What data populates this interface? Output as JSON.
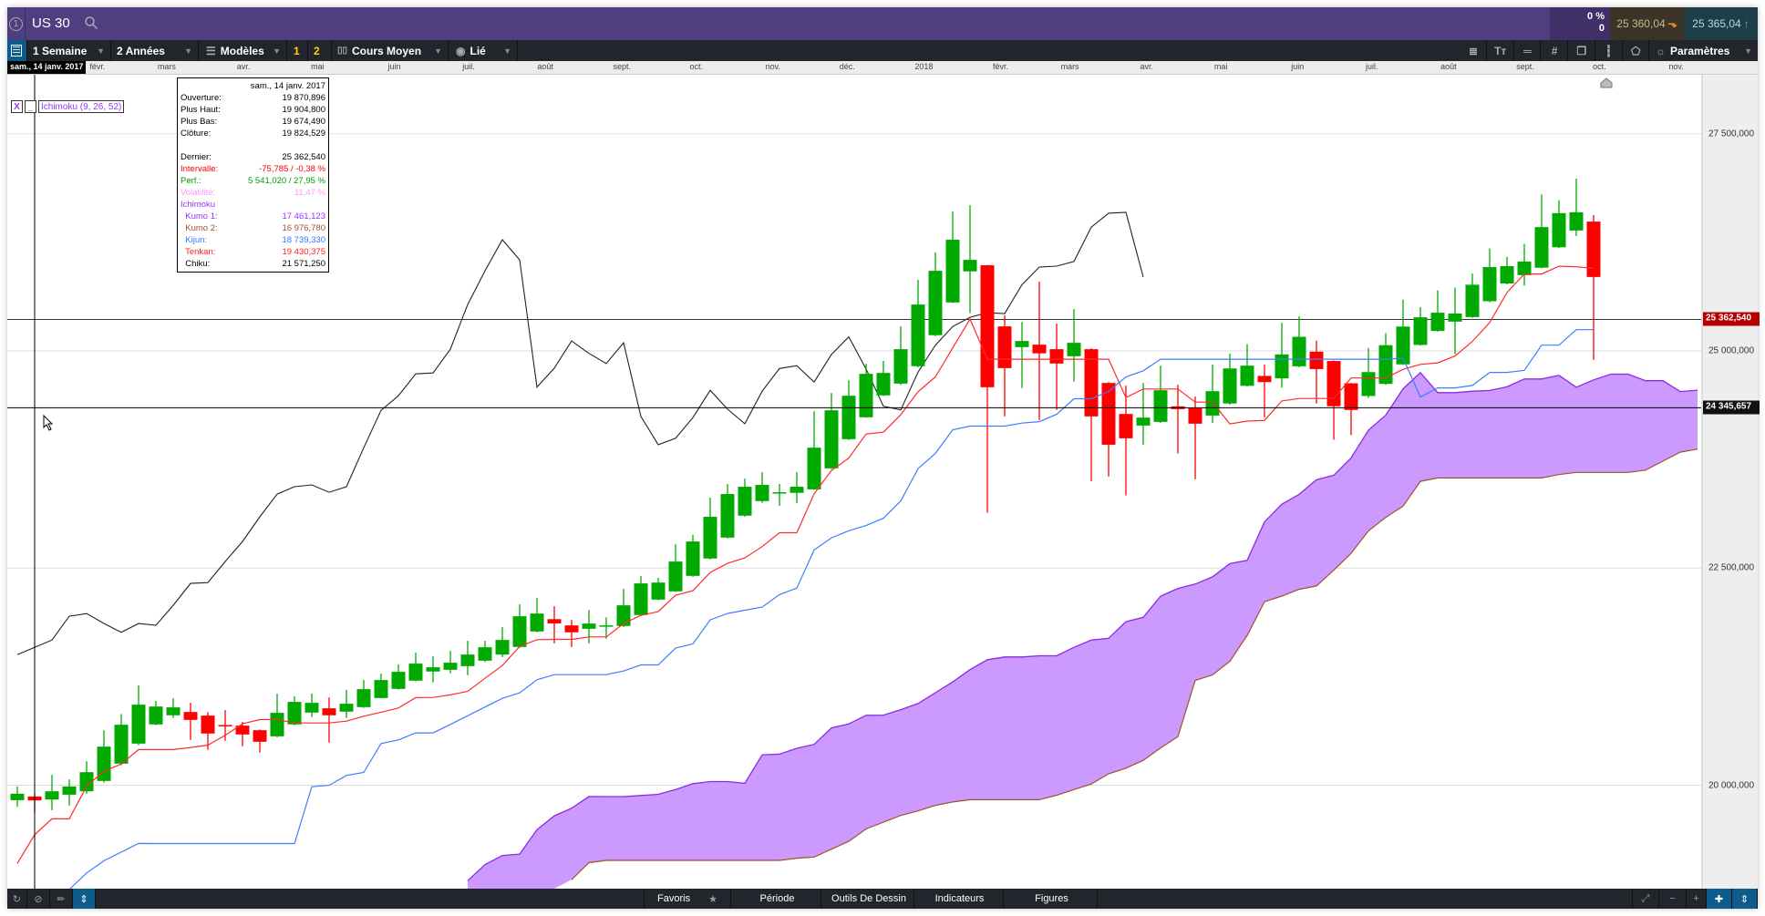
{
  "header": {
    "badge": "1",
    "symbol": "US 30",
    "change_pct": "0 %",
    "change_abs": "0",
    "bid": "25 360,04",
    "ask": "25 365,04"
  },
  "toolbar": {
    "period": "1 Semaine",
    "range": "2 Années",
    "models": "Modèles",
    "layout1": "1",
    "layout2": "2",
    "chart_type": "Cours Moyen",
    "link": "Lié",
    "settings": "Paramètres",
    "right_icons": [
      "price-scale-icon",
      "text-size-icon",
      "horizontal-lines-icon",
      "grid-edit-icon",
      "windows-icon",
      "candle-icon",
      "tag-icon"
    ]
  },
  "crosshair": {
    "date_label": "sam., 14 janv. 2017",
    "price_label": "24 345,657",
    "price": 24345.657
  },
  "last_price": {
    "label": "25 362,540",
    "value": 25362.54
  },
  "legend": {
    "close": "X",
    "minimize": "_",
    "indicator": "Ichimoku (9, 26, 52)"
  },
  "tooltip": {
    "date": "sam., 14 janv. 2017",
    "rows": [
      {
        "label": "Ouverture:",
        "value": "19 870,896",
        "color": "#000000"
      },
      {
        "label": "Plus Haut:",
        "value": "19 904,800",
        "color": "#000000"
      },
      {
        "label": "Plus Bas:",
        "value": "19 674,490",
        "color": "#000000"
      },
      {
        "label": "Clôture:",
        "value": "19 824,529",
        "color": "#000000"
      },
      {
        "label": "",
        "value": "",
        "color": "#000000"
      },
      {
        "label": "Dernier:",
        "value": "25 362,540",
        "color": "#000000"
      },
      {
        "label": "Intervalle:",
        "value": "-75,785 / -0,38 %",
        "color": "#ff0000"
      },
      {
        "label": "Perf.:",
        "value": "5 541,020 / 27,95 %",
        "color": "#00a000"
      },
      {
        "label": "Volatilité:",
        "value": "11,47 %",
        "color": "#ff99ff"
      },
      {
        "label": "Ichimoku",
        "value": "",
        "color": "#9933ff"
      },
      {
        "label": "  Kumo 1:",
        "value": "17 461,123",
        "color": "#9933ff"
      },
      {
        "label": "  Kumo 2:",
        "value": "16 976,780",
        "color": "#a0522d"
      },
      {
        "label": "  Kijun:",
        "value": "18 739,330",
        "color": "#3377ff"
      },
      {
        "label": "  Tenkan:",
        "value": "19 430,375",
        "color": "#ff2222"
      },
      {
        "label": "  Chiku:",
        "value": "21 571,250",
        "color": "#000000"
      }
    ]
  },
  "bottombar": {
    "favorites": "Favoris",
    "period": "Période",
    "drawing_tools": "Outils De Dessin",
    "indicators": "Indicateurs",
    "figures": "Figures"
  },
  "colors": {
    "up": "#00aa00",
    "down": "#ff0000",
    "tenkan": "#ff2a2a",
    "kijun": "#3a7fff",
    "chikou": "#222222",
    "kumo1": "#8a2be2",
    "kumo2": "#a0522d",
    "kumo_fill": "#cc99ff",
    "last_price": "#b30000"
  },
  "chart_data": {
    "type": "candlestick",
    "interval": "weekly",
    "first_week": "2017-01-07",
    "ylim": [
      18810,
      28180
    ],
    "yticks": [
      {
        "v": 27500,
        "label": "27 500,000"
      },
      {
        "v": 25000,
        "label": "25 000,000"
      },
      {
        "v": 22500,
        "label": "22 500,000"
      },
      {
        "v": 20000,
        "label": "20 000,000"
      }
    ],
    "xticks": [
      {
        "d": "2017-02-01",
        "label": "févr."
      },
      {
        "d": "2017-03-01",
        "label": "mars"
      },
      {
        "d": "2017-04-01",
        "label": "avr."
      },
      {
        "d": "2017-05-01",
        "label": "mai"
      },
      {
        "d": "2017-06-01",
        "label": "juin"
      },
      {
        "d": "2017-07-01",
        "label": "juil."
      },
      {
        "d": "2017-08-01",
        "label": "août"
      },
      {
        "d": "2017-09-01",
        "label": "sept."
      },
      {
        "d": "2017-10-01",
        "label": "oct."
      },
      {
        "d": "2017-11-01",
        "label": "nov."
      },
      {
        "d": "2017-12-01",
        "label": "déc."
      },
      {
        "d": "2018-01-01",
        "label": "2018"
      },
      {
        "d": "2018-02-01",
        "label": "févr."
      },
      {
        "d": "2018-03-01",
        "label": "mars"
      },
      {
        "d": "2018-04-01",
        "label": "avr."
      },
      {
        "d": "2018-05-01",
        "label": "mai"
      },
      {
        "d": "2018-06-01",
        "label": "juin"
      },
      {
        "d": "2018-07-01",
        "label": "juil."
      },
      {
        "d": "2018-08-01",
        "label": "août"
      },
      {
        "d": "2018-09-01",
        "label": "sept."
      },
      {
        "d": "2018-10-01",
        "label": "oct."
      },
      {
        "d": "2018-11-01",
        "label": "nov."
      }
    ],
    "open": [
      19828,
      19870,
      19835,
      19891,
      19930,
      20049,
      20248,
      20479,
      20700,
      20805,
      20843,
      20801,
      20693,
      20686,
      20633,
      20563,
      20700,
      20836,
      20885,
      20847,
      20899,
      21004,
      21109,
      21204,
      21309,
      21329,
      21371,
      21434,
      21504,
      21592,
      21770,
      21912,
      21840,
      21801,
      21836,
      21833,
      21959,
      22137,
      22232,
      22410,
      22610,
      22851,
      23103,
      23271,
      23370,
      23366,
      23406,
      23648,
      23984,
      24236,
      24488,
      24624,
      24824,
      25181,
      25558,
      25916,
      25986,
      25282,
      25044,
      25072,
      25020,
      24939,
      25020,
      24631,
      24274,
      24141,
      24183,
      24362,
      24340,
      24256,
      24395,
      24598,
      24712,
      24684,
      24823,
      24991,
      24884,
      24627,
      24481,
      24620,
      24845,
      25069,
      25230,
      25337,
      25390,
      25572,
      25776,
      25872,
      25958,
      26193,
      26386,
      26489
    ],
    "high": [
      19986,
      19905,
      20119,
      20066,
      20276,
      20633,
      20819,
      21148,
      20970,
      21001,
      20949,
      20840,
      20865,
      20728,
      20640,
      21053,
      21022,
      21054,
      21011,
      21096,
      21211,
      21285,
      21390,
      21526,
      21484,
      21546,
      21662,
      21662,
      21819,
      22081,
      22155,
      22060,
      21903,
      22018,
      21934,
      22260,
      22407,
      22386,
      22775,
      22880,
      23310,
      23468,
      23530,
      23604,
      23468,
      23604,
      24306,
      24516,
      24662,
      24852,
      24883,
      25282,
      25818,
      26133,
      26605,
      26678,
      25990,
      25408,
      25334,
      25797,
      25314,
      25482,
      25030,
      24640,
      24600,
      24631,
      24830,
      24610,
      24474,
      24841,
      24967,
      25077,
      24841,
      25323,
      25398,
      25119,
      24890,
      24630,
      25034,
      25205,
      25590,
      25505,
      25697,
      25730,
      25890,
      26179,
      26083,
      26233,
      26800,
      26735,
      26982,
      26564
    ],
    "low": [
      19752,
      19674,
      19713,
      19766,
      19900,
      20030,
      20230,
      20460,
      20690,
      20774,
      20522,
      20406,
      20511,
      20448,
      20375,
      20550,
      20690,
      20784,
      20490,
      20774,
      20890,
      21000,
      21100,
      21195,
      21183,
      21287,
      21266,
      21420,
      21476,
      21580,
      21760,
      21633,
      21592,
      21633,
      21686,
      21820,
      21950,
      22130,
      22225,
      22400,
      22600,
      22840,
      23090,
      23250,
      23216,
      23247,
      23400,
      23640,
      23975,
      24230,
      24480,
      24610,
      24810,
      25170,
      25550,
      25436,
      23136,
      24246,
      24572,
      24204,
      24320,
      24645,
      23500,
      23553,
      23336,
      23920,
      24170,
      23820,
      23522,
      24172,
      24380,
      24588,
      24235,
      24577,
      24810,
      24395,
      23978,
      24031,
      24459,
      24610,
      24840,
      25060,
      25220,
      24962,
      25380,
      25560,
      25766,
      25754,
      25950,
      26185,
      26322,
      24898
    ],
    "close": [
      19902,
      19825,
      19930,
      19986,
      20150,
      20444,
      20696,
      20927,
      20906,
      20896,
      20752,
      20595,
      20679,
      20584,
      20500,
      20833,
      20959,
      20948,
      20805,
      20938,
      21106,
      21211,
      21305,
      21400,
      21358,
      21410,
      21504,
      21588,
      21672,
      21945,
      21976,
      21863,
      21760,
      21861,
      21840,
      22071,
      22323,
      22333,
      22575,
      22806,
      23090,
      23352,
      23436,
      23457,
      23373,
      23436,
      23886,
      24316,
      24484,
      24736,
      24746,
      25020,
      25534,
      25922,
      26280,
      26048,
      24582,
      24802,
      25114,
      24972,
      24855,
      25093,
      24246,
      23920,
      23994,
      24232,
      24547,
      24330,
      24162,
      24536,
      24798,
      24830,
      24641,
      24959,
      25162,
      24791,
      24363,
      24320,
      24756,
      25066,
      25280,
      25387,
      25440,
      25430,
      25762,
      25965,
      25976,
      26029,
      26425,
      26586,
      26596,
      25851
    ],
    "tenkan": [
      19100,
      19430,
      19613,
      19613,
      19986,
      20164,
      20242,
      20410,
      20410,
      20410,
      20434,
      20462,
      20574,
      20707,
      20756,
      20756,
      20717,
      20717,
      20717,
      20738,
      20794,
      20840,
      20889,
      21008,
      21011,
      21040,
      21081,
      21231,
      21378,
      21598,
      21676,
      21679,
      21679,
      21707,
      21707,
      21861,
      21956,
      21998,
      22187,
      22239,
      22449,
      22554,
      22617,
      22747,
      22907,
      22907,
      23355,
      23623,
      23766,
      24043,
      24064,
      24264,
      24530,
      24701,
      25034,
      25366,
      24904,
      24904,
      24904,
      24904,
      24904,
      24904,
      24904,
      24904,
      24463,
      24561,
      24561,
      24561,
      24410,
      24410,
      24159,
      24192,
      24199,
      24424,
      24452,
      24452,
      24452,
      24688,
      24688,
      24688,
      24788,
      24845,
      24863,
      24941,
      25109,
      25326,
      25672,
      25886,
      25886,
      25975,
      25969,
      25951
    ],
    "kijun": [
      18700,
      18739,
      18770,
      18800,
      18990,
      19130,
      19230,
      19330,
      19328,
      19328,
      19328,
      19328,
      19328,
      19328,
      19328,
      19328,
      19328,
      19982,
      19999,
      20112,
      20147,
      20480,
      20522,
      20602,
      20602,
      20700,
      20800,
      20900,
      21000,
      21063,
      21214,
      21273,
      21273,
      21273,
      21273,
      21315,
      21385,
      21385,
      21578,
      21627,
      21903,
      21977,
      22015,
      22050,
      22194,
      22270,
      22708,
      22848,
      22930,
      22990,
      23073,
      23273,
      23644,
      23819,
      24092,
      24134,
      24134,
      24134,
      24169,
      24186,
      24270,
      24449,
      24449,
      24533,
      24701,
      24771,
      24904,
      24904,
      24904,
      24904,
      24904,
      24904,
      24904,
      24904,
      24904,
      24904,
      24904,
      24904,
      24904,
      24904,
      24916,
      24470,
      24574,
      24574,
      24602,
      24752,
      24752,
      24777,
      25066,
      25066,
      25244,
      25244
    ],
    "kumo2": [
      null,
      null,
      null,
      null,
      null,
      null,
      null,
      null,
      null,
      null,
      null,
      null,
      null,
      null,
      null,
      null,
      null,
      null,
      null,
      null,
      null,
      null,
      null,
      null,
      null,
      null,
      null,
      null,
      null,
      null,
      null,
      null,
      18913,
      19108,
      19134,
      19134,
      19134,
      19134,
      19134,
      19134,
      19134,
      19134,
      19134,
      19134,
      19134,
      19160,
      19173,
      19263,
      19354,
      19496,
      19574,
      19652,
      19704,
      19768,
      19807,
      19833,
      19833,
      19833,
      19833,
      19833,
      19885,
      19950,
      20014,
      20131,
      20196,
      20286,
      20429,
      20558,
      21206,
      21270,
      21426,
      21724,
      22112,
      22177,
      22255,
      22294,
      22475,
      22669,
      22928,
      23083,
      23213,
      23498,
      23537,
      23537,
      23537,
      23537,
      23537,
      23537,
      23537,
      23576,
      23601,
      23601,
      23601,
      23601,
      23627,
      23731,
      23834,
      23870
    ],
    "ichimoku_params": [
      9,
      26,
      52
    ]
  }
}
